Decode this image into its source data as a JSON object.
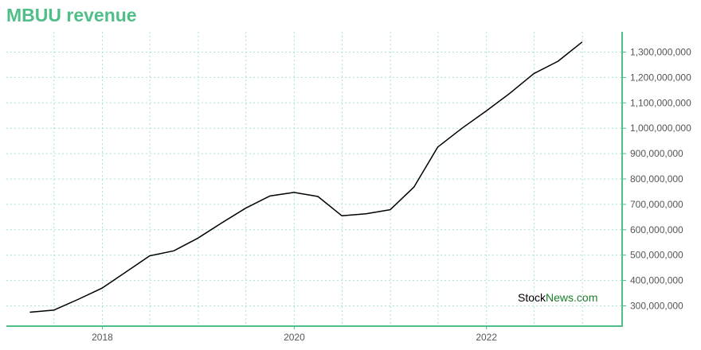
{
  "page": {
    "title": "MBUU revenue"
  },
  "watermark": {
    "part1": "Stock",
    "part2": "News.com"
  },
  "colors": {
    "accent": "#4fbe87",
    "grid": "#a8e6cc",
    "line": "#000000",
    "watermark_green": "#1e7d2e"
  },
  "chart_data": {
    "type": "line",
    "title": "MBUU revenue",
    "xlabel": "",
    "ylabel": "",
    "grid": true,
    "x_ticks": [
      "2018",
      "2020",
      "2022"
    ],
    "y_ticks": [
      "300,000,000",
      "400,000,000",
      "500,000,000",
      "600,000,000",
      "700,000,000",
      "800,000,000",
      "900,000,000",
      "1,000,000,000",
      "1,100,000,000",
      "1,200,000,000",
      "1,300,000,000"
    ],
    "ylim": [
      220000000,
      1380000000
    ],
    "xlim": [
      "2017-01-01",
      "2023-06-01"
    ],
    "series": [
      {
        "x": [
          "2017-03-31",
          "2017-06-30",
          "2017-09-30",
          "2017-12-31",
          "2018-03-31",
          "2018-06-30",
          "2018-09-30",
          "2018-12-31",
          "2019-03-31",
          "2019-06-30",
          "2019-09-30",
          "2019-12-31",
          "2020-03-31",
          "2020-06-30",
          "2020-09-30",
          "2020-12-31",
          "2021-03-31",
          "2021-06-30",
          "2021-09-30",
          "2021-12-31",
          "2022-03-31",
          "2022-06-30",
          "2022-09-30",
          "2022-12-31"
        ],
        "values": [
          275000000,
          283000000,
          325000000,
          370000000,
          433000000,
          497000000,
          517000000,
          567000000,
          627000000,
          685000000,
          733000000,
          747000000,
          731000000,
          655000000,
          663000000,
          679000000,
          768000000,
          926000000,
          1000000000,
          1068000000,
          1138000000,
          1215000000,
          1264000000,
          1340000000
        ]
      }
    ]
  }
}
